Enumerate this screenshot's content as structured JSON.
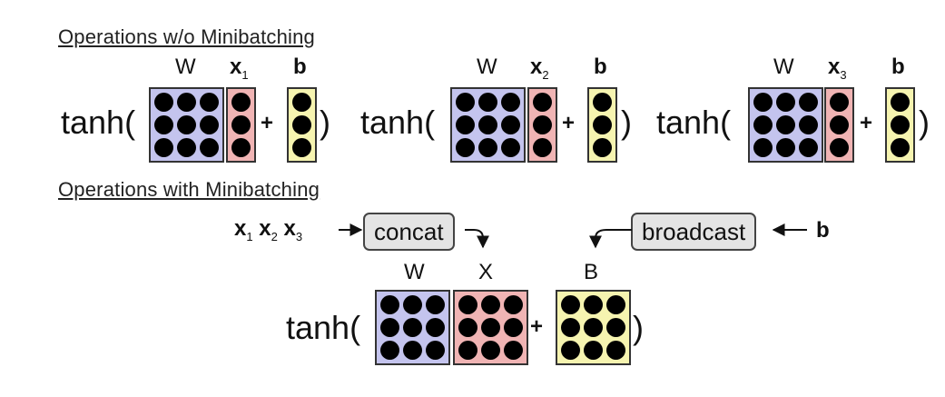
{
  "headings": {
    "without": "Operations w/o Minibatching",
    "with": "Operations with Minibatching"
  },
  "func": "tanh(",
  "close_paren": ")",
  "plus": "+",
  "weight_label": "W",
  "bias_label": "b",
  "input_base": "x",
  "unbatched": [
    {
      "sub": "1"
    },
    {
      "sub": "2"
    },
    {
      "sub": "3"
    }
  ],
  "batched": {
    "concat_label": "concat",
    "broadcast_label": "broadcast",
    "input_subs": [
      "1",
      "2",
      "3"
    ],
    "bias_input": "b",
    "labels": {
      "w": "W",
      "x": "X",
      "b": "B"
    }
  },
  "colors": {
    "weight": "#c4c4ee",
    "input": "#f0b4b4",
    "bias": "#f6f4b0",
    "circle": "#000000",
    "border": "#333333"
  }
}
